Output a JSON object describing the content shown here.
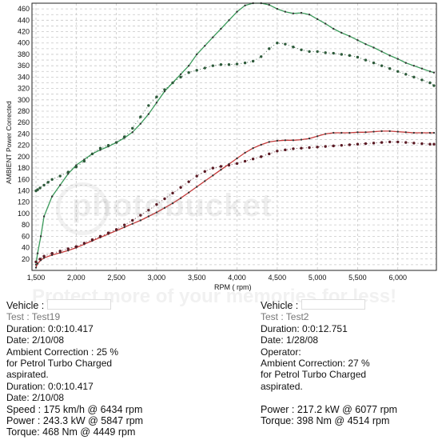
{
  "chart_data": {
    "type": "line",
    "xlabel": "RPM ( rpm)",
    "ylabel": "AMBIENT Power Corrected",
    "xlim": [
      1450,
      6480
    ],
    "ylim": [
      0,
      470
    ],
    "x_ticks": [
      "1,500",
      "2,000",
      "2,500",
      "3,000",
      "3,500",
      "4,000",
      "4,500",
      "5,000",
      "5,500",
      "6,000"
    ],
    "x_tick_values": [
      1500,
      2000,
      2500,
      3000,
      3500,
      4000,
      4500,
      5000,
      5500,
      6000
    ],
    "y_ticks": [
      0,
      10,
      20,
      30,
      40,
      50,
      60,
      70,
      80,
      90,
      100,
      110,
      120,
      130,
      140,
      150,
      160,
      170,
      180,
      190,
      200,
      210,
      220,
      230,
      240,
      250,
      260,
      270,
      280,
      290,
      300,
      310,
      320,
      330,
      340,
      350,
      360,
      370,
      380,
      390,
      400,
      410,
      420,
      430,
      440,
      450,
      460
    ],
    "y_tick_labels": [
      20,
      40,
      60,
      80,
      100,
      120,
      140,
      160,
      180,
      200,
      220,
      240,
      260,
      280,
      300,
      320,
      340,
      360,
      380,
      400,
      420,
      440,
      460
    ],
    "grid": true,
    "series": [
      {
        "color": "#3a9a5a",
        "style": "line",
        "x": [
          1500,
          1520,
          1560,
          1600,
          1700,
          1800,
          1900,
          2000,
          2100,
          2200,
          2300,
          2400,
          2500,
          2600,
          2700,
          2800,
          2900,
          3000,
          3100,
          3200,
          3300,
          3400,
          3500,
          3600,
          3700,
          3800,
          3900,
          4000,
          4100,
          4200,
          4300,
          4400,
          4500,
          4600,
          4700,
          4800,
          4900,
          5000,
          5100,
          5200,
          5300,
          5400,
          5500,
          5600,
          5700,
          5800,
          5900,
          6000,
          6100,
          6200,
          6300,
          6400,
          6450
        ],
        "y": [
          10,
          30,
          60,
          95,
          130,
          150,
          170,
          185,
          195,
          205,
          212,
          218,
          225,
          233,
          243,
          258,
          275,
          295,
          315,
          330,
          345,
          360,
          380,
          395,
          410,
          425,
          440,
          455,
          466,
          470,
          470,
          467,
          460,
          455,
          452,
          453,
          450,
          442,
          434,
          425,
          418,
          412,
          405,
          398,
          392,
          385,
          378,
          372,
          365,
          360,
          355,
          350,
          348
        ]
      },
      {
        "color": "#2d5a3a",
        "style": "dots",
        "x": [
          1500,
          1520,
          1550,
          1600,
          1650,
          1700,
          1800,
          1900,
          2000,
          2100,
          2200,
          2300,
          2400,
          2500,
          2600,
          2700,
          2800,
          2900,
          3000,
          3100,
          3200,
          3300,
          3400,
          3500,
          3600,
          3700,
          3800,
          3900,
          4000,
          4100,
          4200,
          4300,
          4400,
          4500,
          4600,
          4700,
          4800,
          4900,
          5000,
          5100,
          5200,
          5300,
          5400,
          5500,
          5600,
          5700,
          5800,
          5900,
          6000,
          6100,
          6200,
          6300,
          6400,
          6450
        ],
        "y": [
          140,
          142,
          145,
          150,
          155,
          160,
          166,
          173,
          182,
          192,
          205,
          215,
          220,
          225,
          235,
          250,
          270,
          290,
          305,
          318,
          330,
          340,
          348,
          352,
          356,
          360,
          362,
          362,
          363,
          365,
          368,
          376,
          390,
          400,
          398,
          393,
          388,
          385,
          385,
          383,
          382,
          380,
          378,
          375,
          370,
          365,
          360,
          355,
          350,
          345,
          340,
          335,
          330,
          325
        ]
      },
      {
        "color": "#c43a3a",
        "style": "line",
        "x": [
          1500,
          1520,
          1560,
          1600,
          1700,
          1800,
          1900,
          2000,
          2100,
          2200,
          2300,
          2400,
          2500,
          2600,
          2700,
          2800,
          2900,
          3000,
          3100,
          3200,
          3300,
          3400,
          3500,
          3600,
          3700,
          3800,
          3900,
          4000,
          4100,
          4200,
          4300,
          4400,
          4500,
          4600,
          4700,
          4800,
          4900,
          5000,
          5100,
          5200,
          5300,
          5400,
          5500,
          5600,
          5700,
          5800,
          5900,
          6000,
          6100,
          6200,
          6300,
          6400,
          6450
        ],
        "y": [
          5,
          12,
          18,
          22,
          27,
          31,
          35,
          40,
          46,
          52,
          58,
          64,
          70,
          76,
          82,
          88,
          95,
          102,
          110,
          118,
          127,
          137,
          147,
          157,
          167,
          177,
          187,
          197,
          207,
          215,
          221,
          226,
          228,
          229,
          229,
          230,
          232,
          236,
          240,
          242,
          242,
          242,
          243,
          243,
          244,
          245,
          245,
          244,
          243,
          242,
          242,
          242,
          242
        ]
      },
      {
        "color": "#5a1a24",
        "style": "dots",
        "x": [
          1500,
          1550,
          1600,
          1700,
          1800,
          1900,
          2000,
          2100,
          2200,
          2300,
          2400,
          2500,
          2600,
          2700,
          2800,
          2900,
          3000,
          3100,
          3200,
          3300,
          3400,
          3500,
          3600,
          3700,
          3800,
          3900,
          4000,
          4100,
          4200,
          4300,
          4400,
          4500,
          4600,
          4700,
          4800,
          4900,
          5000,
          5100,
          5200,
          5300,
          5400,
          5500,
          5600,
          5700,
          5800,
          5900,
          6000,
          6100,
          6200,
          6300,
          6400,
          6450
        ],
        "y": [
          15,
          20,
          25,
          30,
          34,
          38,
          42,
          48,
          54,
          60,
          66,
          72,
          80,
          88,
          97,
          106,
          116,
          126,
          136,
          146,
          156,
          166,
          174,
          180,
          183,
          185,
          188,
          192,
          196,
          200,
          205,
          210,
          212,
          214,
          215,
          216,
          217,
          218,
          219,
          220,
          221,
          222,
          223,
          224,
          225,
          226,
          226,
          225,
          224,
          223,
          222,
          222
        ]
      }
    ]
  },
  "left_info": {
    "vehicle": "Vehicle :",
    "test": "Test    : Test19",
    "duration1": "Duration: 0:0:10.417",
    "date1": "Date:  2/10/08",
    "ambient": "Ambient Correction : 25 %",
    "ambient2": " for Petrol Turbo Charged",
    "ambient3": "aspirated.",
    "duration2": "Duration: 0:0:10.417",
    "date2": "Date:  2/10/08",
    "speed": "Speed : 175 km/h @ 6434 rpm",
    "power": "Power : 243.3 kW @ 5847 rpm",
    "torque": "Torque: 468 Nm @ 4449 rpm"
  },
  "right_info": {
    "vehicle": "Vehicle :",
    "test": "Test    : Test2",
    "duration": "Duration: 0:0:12.751",
    "date": "Date:  1/28/08",
    "operator": "Operator:",
    "ambient": "Ambient Correction: 27 %",
    "ambient2": " for Petrol Turbo Charged",
    "ambient3": "aspirated.",
    "power": "Power : 217.2 kW @ 6077 rpm",
    "torque": "Torque: 398 Nm @ 4514 rpm"
  },
  "colors": {
    "grid": "#c8c8c8",
    "frame": "#222222"
  }
}
